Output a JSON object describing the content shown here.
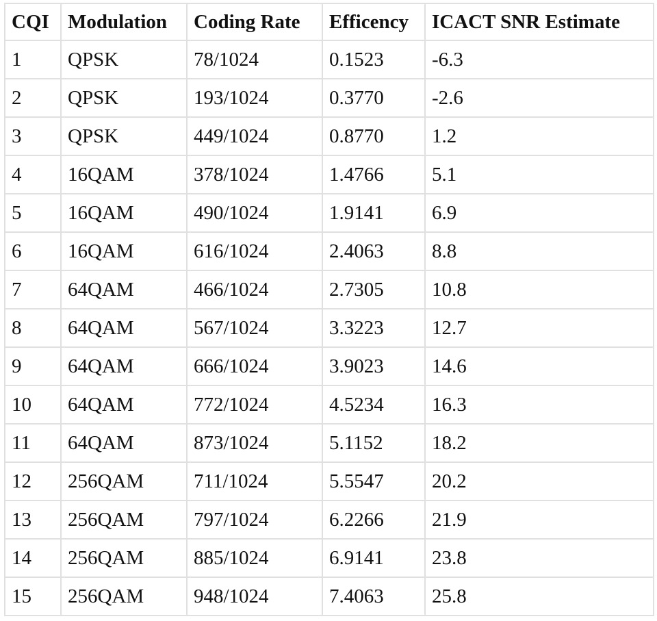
{
  "table": {
    "header": [
      "CQI",
      "Modulation",
      "Coding Rate",
      "Efficency",
      "ICACT SNR Estimate"
    ],
    "rows": [
      [
        "1",
        "QPSK",
        "78/1024",
        "0.1523",
        "-6.3"
      ],
      [
        "2",
        "QPSK",
        "193/1024",
        "0.3770",
        "-2.6"
      ],
      [
        "3",
        "QPSK",
        "449/1024",
        "0.8770",
        "1.2"
      ],
      [
        "4",
        "16QAM",
        "378/1024",
        "1.4766",
        "5.1"
      ],
      [
        "5",
        "16QAM",
        "490/1024",
        "1.9141",
        "6.9"
      ],
      [
        "6",
        "16QAM",
        "616/1024",
        "2.4063",
        "8.8"
      ],
      [
        "7",
        "64QAM",
        "466/1024",
        "2.7305",
        "10.8"
      ],
      [
        "8",
        "64QAM",
        "567/1024",
        "3.3223",
        "12.7"
      ],
      [
        "9",
        "64QAM",
        "666/1024",
        "3.9023",
        "14.6"
      ],
      [
        "10",
        "64QAM",
        "772/1024",
        "4.5234",
        "16.3"
      ],
      [
        "11",
        "64QAM",
        "873/1024",
        "5.1152",
        "18.2"
      ],
      [
        "12",
        "256QAM",
        "711/1024",
        "5.5547",
        "20.2"
      ],
      [
        "13",
        "256QAM",
        "797/1024",
        "6.2266",
        "21.9"
      ],
      [
        "14",
        "256QAM",
        "885/1024",
        "6.9141",
        "23.8"
      ],
      [
        "15",
        "256QAM",
        "948/1024",
        "7.4063",
        "25.8"
      ]
    ]
  }
}
